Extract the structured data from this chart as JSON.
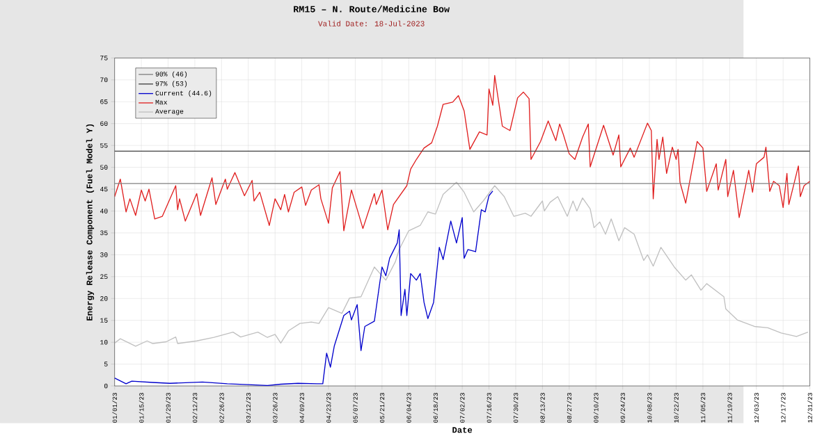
{
  "chart_data": {
    "type": "line",
    "title": "RM15 – N. Route/Medicine Bow",
    "subtitle": "Valid Date: 18-Jul-2023",
    "xlabel": "Date",
    "ylabel": "Energy Release Component (Fuel Model Y)",
    "xlim": [
      "2023-01-01",
      "2023-12-31"
    ],
    "ylim": [
      0,
      75
    ],
    "yticks": [
      0,
      5,
      10,
      15,
      20,
      25,
      30,
      35,
      40,
      45,
      50,
      55,
      60,
      65,
      70,
      75
    ],
    "xticks": [
      {
        "value": "2023-01-01",
        "label": "01/01/23"
      },
      {
        "value": "2023-01-15",
        "label": "01/15/23"
      },
      {
        "value": "2023-01-29",
        "label": "01/29/23"
      },
      {
        "value": "2023-02-12",
        "label": "02/12/23"
      },
      {
        "value": "2023-02-26",
        "label": "02/26/23"
      },
      {
        "value": "2023-03-12",
        "label": "03/12/23"
      },
      {
        "value": "2023-03-26",
        "label": "03/26/23"
      },
      {
        "value": "2023-04-09",
        "label": "04/09/23"
      },
      {
        "value": "2023-04-23",
        "label": "04/23/23"
      },
      {
        "value": "2023-05-07",
        "label": "05/07/23"
      },
      {
        "value": "2023-05-21",
        "label": "05/21/23"
      },
      {
        "value": "2023-06-04",
        "label": "06/04/23"
      },
      {
        "value": "2023-06-18",
        "label": "06/18/23"
      },
      {
        "value": "2023-07-02",
        "label": "07/02/23"
      },
      {
        "value": "2023-07-16",
        "label": "07/16/23"
      },
      {
        "value": "2023-07-30",
        "label": "07/30/23"
      },
      {
        "value": "2023-08-13",
        "label": "08/13/23"
      },
      {
        "value": "2023-08-27",
        "label": "08/27/23"
      },
      {
        "value": "2023-09-10",
        "label": "09/10/23"
      },
      {
        "value": "2023-09-24",
        "label": "09/24/23"
      },
      {
        "value": "2023-10-08",
        "label": "10/08/23"
      },
      {
        "value": "2023-10-22",
        "label": "10/22/23"
      },
      {
        "value": "2023-11-05",
        "label": "11/05/23"
      },
      {
        "value": "2023-11-19",
        "label": "11/19/23"
      },
      {
        "value": "2023-12-03",
        "label": "12/03/23"
      },
      {
        "value": "2023-12-17",
        "label": "12/17/23"
      },
      {
        "value": "2023-12-31",
        "label": "12/31/23"
      }
    ],
    "grid": true,
    "legend": "top left",
    "marker": "none",
    "line_style": "solid",
    "series": [
      {
        "name": "90% (46)",
        "color": "#808080",
        "x": [
          "2023-01-01",
          "2023-12-31"
        ],
        "values": [
          46.3,
          46.3
        ]
      },
      {
        "name": "97% (53)",
        "color": "#404040",
        "x": [
          "2023-01-01",
          "2023-12-31"
        ],
        "values": [
          53.7,
          53.7
        ]
      },
      {
        "name": "Current (44.6)",
        "color": "#0000cc",
        "x": [
          "2023-01-01",
          "2023-01-07",
          "2023-01-10",
          "2023-01-21",
          "2023-01-30",
          "2023-02-16",
          "2023-03-01",
          "2023-03-12",
          "2023-03-22",
          "2023-03-29",
          "2023-04-07",
          "2023-04-17",
          "2023-04-20",
          "2023-04-22",
          "2023-04-24",
          "2023-04-26",
          "2023-05-01",
          "2023-05-04",
          "2023-05-05",
          "2023-05-08",
          "2023-05-10",
          "2023-05-12",
          "2023-05-17",
          "2023-05-21",
          "2023-05-23",
          "2023-05-25",
          "2023-05-29",
          "2023-05-30",
          "2023-05-31",
          "2023-06-02",
          "2023-06-03",
          "2023-06-05",
          "2023-06-08",
          "2023-06-10",
          "2023-06-12",
          "2023-06-14",
          "2023-06-17",
          "2023-06-20",
          "2023-06-22",
          "2023-06-26",
          "2023-06-29",
          "2023-07-02",
          "2023-07-03",
          "2023-07-05",
          "2023-07-09",
          "2023-07-12",
          "2023-07-14",
          "2023-07-16",
          "2023-07-18"
        ],
        "values": [
          1.8,
          0.5,
          1.1,
          0.8,
          0.6,
          0.9,
          0.5,
          0.3,
          0.1,
          0.4,
          0.6,
          0.5,
          0.5,
          7.5,
          4.3,
          9.1,
          16.1,
          17.1,
          15.1,
          18.6,
          8.1,
          13.6,
          14.8,
          27.2,
          25.2,
          29.2,
          32.7,
          35.7,
          16.1,
          22.1,
          16.1,
          25.7,
          24.2,
          25.7,
          19.1,
          15.4,
          19.1,
          31.7,
          28.9,
          37.7,
          32.7,
          38.5,
          29.2,
          31.2,
          30.7,
          40.3,
          39.8,
          43.5,
          44.6
        ]
      },
      {
        "name": "Max",
        "color": "#e02020",
        "x": [
          "2023-01-01",
          "2023-01-04",
          "2023-01-07",
          "2023-01-09",
          "2023-01-12",
          "2023-01-15",
          "2023-01-17",
          "2023-01-19",
          "2023-01-22",
          "2023-01-26",
          "2023-02-02",
          "2023-02-03",
          "2023-02-04",
          "2023-02-07",
          "2023-02-13",
          "2023-02-15",
          "2023-02-21",
          "2023-02-23",
          "2023-02-28",
          "2023-03-01",
          "2023-03-05",
          "2023-03-10",
          "2023-03-14",
          "2023-03-15",
          "2023-03-18",
          "2023-03-23",
          "2023-03-26",
          "2023-03-29",
          "2023-03-31",
          "2023-04-02",
          "2023-04-05",
          "2023-04-09",
          "2023-04-11",
          "2023-04-14",
          "2023-04-18",
          "2023-04-19",
          "2023-04-23",
          "2023-04-25",
          "2023-04-29",
          "2023-05-01",
          "2023-05-05",
          "2023-05-11",
          "2023-05-17",
          "2023-05-18",
          "2023-05-21",
          "2023-05-24",
          "2023-05-27",
          "2023-06-03",
          "2023-06-05",
          "2023-06-08",
          "2023-06-12",
          "2023-06-16",
          "2023-06-19",
          "2023-06-22",
          "2023-06-27",
          "2023-06-30",
          "2023-07-03",
          "2023-07-06",
          "2023-07-11",
          "2023-07-15",
          "2023-07-16",
          "2023-07-18",
          "2023-07-19",
          "2023-07-23",
          "2023-07-27",
          "2023-07-31",
          "2023-08-03",
          "2023-08-06",
          "2023-08-07",
          "2023-08-12",
          "2023-08-16",
          "2023-08-20",
          "2023-08-22",
          "2023-08-24",
          "2023-08-27",
          "2023-08-30",
          "2023-09-03",
          "2023-09-06",
          "2023-09-07",
          "2023-09-14",
          "2023-09-19",
          "2023-09-22",
          "2023-09-23",
          "2023-09-28",
          "2023-09-30",
          "2023-10-07",
          "2023-10-09",
          "2023-10-10",
          "2023-10-12",
          "2023-10-13",
          "2023-10-15",
          "2023-10-17",
          "2023-10-20",
          "2023-10-22",
          "2023-10-23",
          "2023-10-24",
          "2023-10-27",
          "2023-11-02",
          "2023-11-05",
          "2023-11-07",
          "2023-11-12",
          "2023-11-13",
          "2023-11-17",
          "2023-11-18",
          "2023-11-21",
          "2023-11-24",
          "2023-11-29",
          "2023-12-01",
          "2023-12-03",
          "2023-12-07",
          "2023-12-08",
          "2023-12-10",
          "2023-12-12",
          "2023-12-15",
          "2023-12-17",
          "2023-12-19",
          "2023-12-20",
          "2023-12-25",
          "2023-12-26",
          "2023-12-28",
          "2023-12-31"
        ],
        "values": [
          43.3,
          47.3,
          39.8,
          42.8,
          39,
          44.8,
          42.3,
          45,
          38.2,
          38.8,
          45.8,
          40.3,
          42.8,
          37.7,
          44,
          39,
          47.6,
          41.5,
          47.3,
          45,
          48.8,
          43.5,
          47,
          42.3,
          44.3,
          36.7,
          42.8,
          40.3,
          43.8,
          39.8,
          44.3,
          45.5,
          41.3,
          44.8,
          46,
          42.8,
          37.2,
          45.3,
          49,
          35.5,
          44.8,
          36,
          44,
          41.5,
          44.8,
          35.7,
          41.5,
          45.8,
          49.6,
          51.8,
          54.4,
          55.6,
          59.4,
          64.4,
          64.9,
          66.4,
          62.9,
          54.1,
          58.1,
          57.4,
          67.9,
          64.2,
          71,
          59.4,
          58.4,
          65.9,
          67.2,
          65.7,
          51.8,
          55.9,
          60.6,
          56.1,
          59.9,
          57.4,
          53.1,
          51.8,
          56.9,
          59.9,
          50.1,
          59.6,
          52.8,
          57.4,
          50.1,
          54.4,
          52.3,
          60.1,
          58.4,
          42.8,
          56.4,
          51.8,
          56.9,
          48.6,
          54.6,
          51.8,
          54.1,
          46.6,
          41.8,
          55.9,
          54.4,
          44.5,
          50.8,
          44.8,
          51.8,
          43.3,
          49.3,
          38.5,
          49.3,
          44.3,
          50.8,
          52.3,
          54.6,
          44.5,
          46.8,
          45.8,
          40.8,
          48.6,
          41.5,
          50.3,
          43.3,
          45.8,
          46.8
        ]
      },
      {
        "name": "Average",
        "color": "#c0c0c0",
        "x": [
          "2023-01-01",
          "2023-01-04",
          "2023-01-12",
          "2023-01-18",
          "2023-01-21",
          "2023-01-28",
          "2023-02-02",
          "2023-02-03",
          "2023-02-13",
          "2023-02-22",
          "2023-03-04",
          "2023-03-08",
          "2023-03-17",
          "2023-03-22",
          "2023-03-26",
          "2023-03-29",
          "2023-04-02",
          "2023-04-08",
          "2023-04-14",
          "2023-04-18",
          "2023-04-23",
          "2023-04-30",
          "2023-05-04",
          "2023-05-10",
          "2023-05-17",
          "2023-05-23",
          "2023-05-28",
          "2023-05-30",
          "2023-06-04",
          "2023-06-10",
          "2023-06-14",
          "2023-06-18",
          "2023-06-22",
          "2023-06-29",
          "2023-07-03",
          "2023-07-08",
          "2023-07-13",
          "2023-07-19",
          "2023-07-24",
          "2023-07-29",
          "2023-08-04",
          "2023-08-07",
          "2023-08-13",
          "2023-08-14",
          "2023-08-17",
          "2023-08-21",
          "2023-08-26",
          "2023-08-29",
          "2023-08-31",
          "2023-09-03",
          "2023-09-07",
          "2023-09-09",
          "2023-09-12",
          "2023-09-15",
          "2023-09-18",
          "2023-09-22",
          "2023-09-25",
          "2023-09-30",
          "2023-10-05",
          "2023-10-07",
          "2023-10-10",
          "2023-10-14",
          "2023-10-21",
          "2023-10-27",
          "2023-10-30",
          "2023-11-04",
          "2023-11-07",
          "2023-11-16",
          "2023-11-17",
          "2023-11-23",
          "2023-12-02",
          "2023-12-09",
          "2023-12-16",
          "2023-12-24",
          "2023-12-30"
        ],
        "values": [
          9.8,
          10.8,
          9.1,
          10.3,
          9.7,
          10.1,
          11.2,
          9.7,
          10.3,
          11.1,
          12.3,
          11.2,
          12.3,
          11.1,
          11.8,
          9.8,
          12.6,
          14.3,
          14.6,
          14.3,
          17.9,
          16.6,
          20.1,
          20.4,
          27.2,
          24.2,
          28.4,
          31.2,
          35.5,
          36.7,
          39.8,
          39.3,
          43.8,
          46.6,
          44.3,
          39.8,
          42.3,
          45.8,
          43.3,
          38.8,
          39.5,
          38.8,
          42.3,
          40,
          42,
          43.3,
          38.8,
          42.3,
          40,
          43,
          40.5,
          36.2,
          37.5,
          34.7,
          38.2,
          33.2,
          36.2,
          34.7,
          28.7,
          30,
          27.4,
          31.7,
          27.2,
          24.2,
          25.4,
          21.9,
          23.4,
          20.4,
          17.6,
          15.1,
          13.6,
          13.3,
          12.1,
          11.3,
          12.3
        ]
      }
    ]
  }
}
